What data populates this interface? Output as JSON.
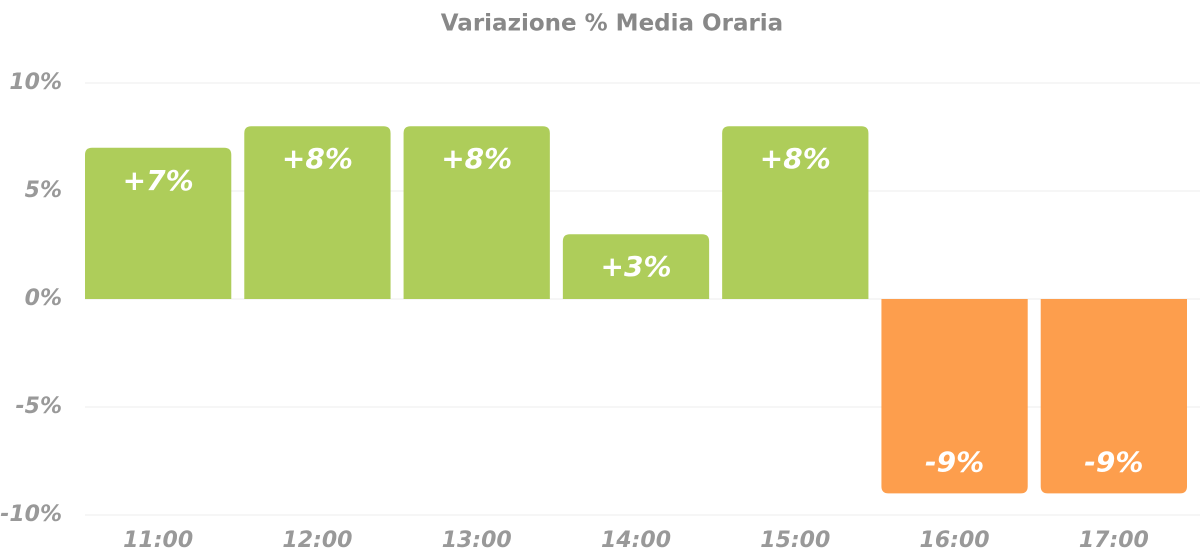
{
  "chart_data": {
    "type": "bar",
    "title": "Variazione % Media Oraria",
    "categories": [
      "11:00",
      "12:00",
      "13:00",
      "14:00",
      "15:00",
      "16:00",
      "17:00"
    ],
    "values": [
      7,
      8,
      8,
      3,
      8,
      -9,
      -9
    ],
    "value_labels": [
      "+7%",
      "+8%",
      "+8%",
      "+3%",
      "+8%",
      "-9%",
      "-9%"
    ],
    "colors": [
      "#aecd5a",
      "#aecd5a",
      "#aecd5a",
      "#aecd5a",
      "#aecd5a",
      "#fd9e4d",
      "#fd9e4d"
    ],
    "ylim": [
      -10,
      10
    ],
    "yticks": [
      {
        "value": 10,
        "label": "10%"
      },
      {
        "value": 5,
        "label": "5%"
      },
      {
        "value": 0,
        "label": "0%"
      },
      {
        "value": -5,
        "label": "-5%"
      },
      {
        "value": -10,
        "label": "-10%"
      }
    ],
    "grid": true
  }
}
